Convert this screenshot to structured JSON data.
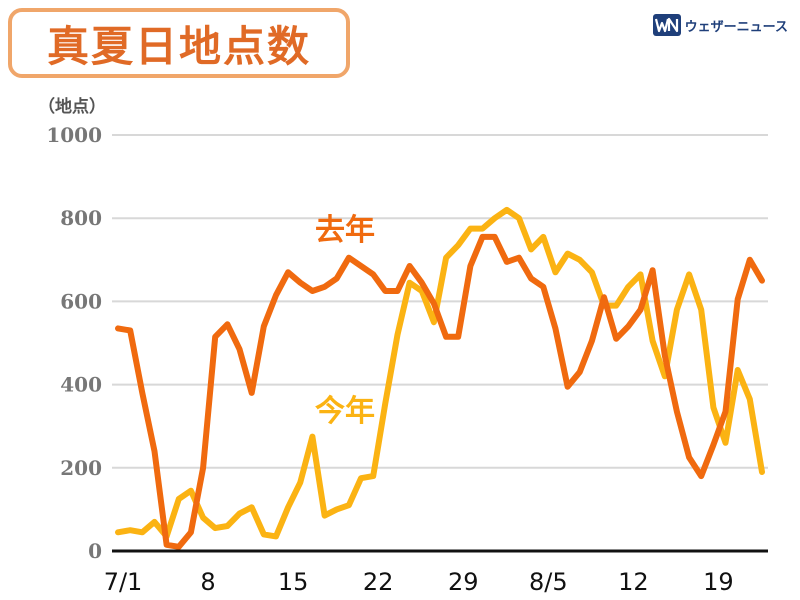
{
  "title": "真夏日地点数",
  "brand": {
    "name": "ウェザーニュース",
    "icon": "wn-logo-icon"
  },
  "colors": {
    "last_year": "#f06a0f",
    "this_year": "#fbb313",
    "title_text": "#e06a26",
    "title_border": "#f0a66a",
    "grid": "#d8d8d8",
    "axis": "#111111"
  },
  "chart_data": {
    "type": "line",
    "title": "真夏日地点数",
    "ylabel": "（地点）",
    "xlabel": "",
    "ylim": [
      0,
      1000
    ],
    "yticks": [
      0,
      200,
      400,
      600,
      800,
      1000
    ],
    "xticks": [
      {
        "day": 0,
        "label": "7/1"
      },
      {
        "day": 7,
        "label": "8"
      },
      {
        "day": 14,
        "label": "15"
      },
      {
        "day": 21,
        "label": "22"
      },
      {
        "day": 28,
        "label": "29"
      },
      {
        "day": 35,
        "label": "8/5"
      },
      {
        "day": 42,
        "label": "12"
      },
      {
        "day": 49,
        "label": "19"
      }
    ],
    "series": [
      {
        "name": "去年",
        "color": "#f06a0f",
        "values": [
          535,
          530,
          380,
          240,
          15,
          10,
          45,
          200,
          515,
          545,
          485,
          380,
          540,
          615,
          670,
          645,
          625,
          635,
          655,
          705,
          685,
          665,
          625,
          625,
          685,
          645,
          595,
          515,
          515,
          685,
          755,
          755,
          695,
          705,
          655,
          635,
          535,
          395,
          430,
          505,
          610,
          510,
          540,
          580,
          675,
          470,
          335,
          225,
          180,
          255,
          335,
          605,
          700,
          650
        ]
      },
      {
        "name": "今年",
        "color": "#fbb313",
        "values": [
          45,
          50,
          45,
          70,
          35,
          125,
          145,
          80,
          55,
          60,
          90,
          105,
          40,
          35,
          105,
          165,
          275,
          85,
          100,
          110,
          175,
          180,
          355,
          520,
          645,
          625,
          550,
          705,
          735,
          775,
          775,
          800,
          820,
          800,
          725,
          755,
          670,
          715,
          700,
          670,
          590,
          590,
          635,
          665,
          505,
          420,
          580,
          665,
          580,
          345,
          260,
          435,
          365,
          190
        ]
      }
    ],
    "annotations": [
      {
        "text": "去年",
        "series": "去年"
      },
      {
        "text": "今年",
        "series": "今年"
      }
    ],
    "grid": true,
    "legend": "none"
  }
}
